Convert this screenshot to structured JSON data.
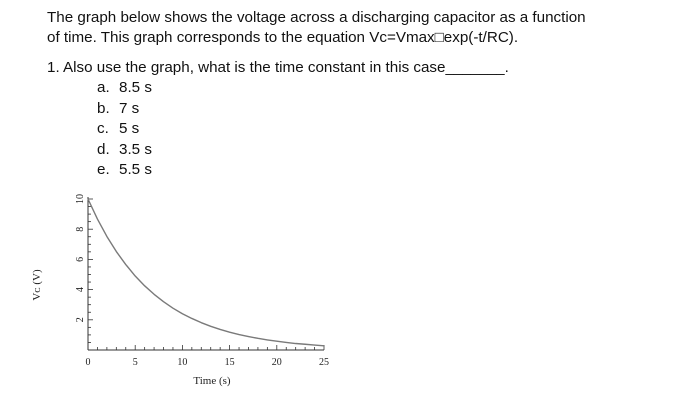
{
  "intro": {
    "line1": "The graph below shows the voltage across a discharging capacitor as a function",
    "line2": "of time. This graph corresponds to the equation Vc=Vmax□exp(-t/RC)."
  },
  "question": {
    "text": "1. Also use the graph, what is the time constant in this case_______."
  },
  "options": [
    {
      "letter": "a.",
      "text": "8.5 s"
    },
    {
      "letter": "b.",
      "text": "7 s"
    },
    {
      "letter": "c.",
      "text": "5 s"
    },
    {
      "letter": "d.",
      "text": "3.5 s"
    },
    {
      "letter": "e.",
      "text": "5.5 s"
    }
  ],
  "chart_data": {
    "type": "line",
    "xlabel": "Time (s)",
    "ylabel": "Vᴄ (V)",
    "xlim": [
      0,
      25
    ],
    "ylim": [
      0,
      10
    ],
    "xticks": [
      "0",
      "5",
      "10",
      "15",
      "20",
      "25"
    ],
    "yticks": [
      "2",
      "4",
      "6",
      "8",
      "10"
    ],
    "grid": false,
    "series": [
      {
        "x": [
          0,
          1,
          2,
          3,
          4,
          5,
          6,
          7,
          8,
          9,
          10,
          11,
          12,
          13,
          14,
          15,
          16,
          17,
          18,
          19,
          20,
          21,
          22,
          23,
          24,
          25
        ],
        "values": [
          10.0,
          8.67,
          7.52,
          6.52,
          5.66,
          4.9,
          4.25,
          3.69,
          3.2,
          2.77,
          2.4,
          2.09,
          1.81,
          1.57,
          1.36,
          1.18,
          1.02,
          0.89,
          0.77,
          0.67,
          0.58,
          0.5,
          0.43,
          0.38,
          0.33,
          0.28
        ],
        "color": "#7a7a7a"
      }
    ]
  }
}
